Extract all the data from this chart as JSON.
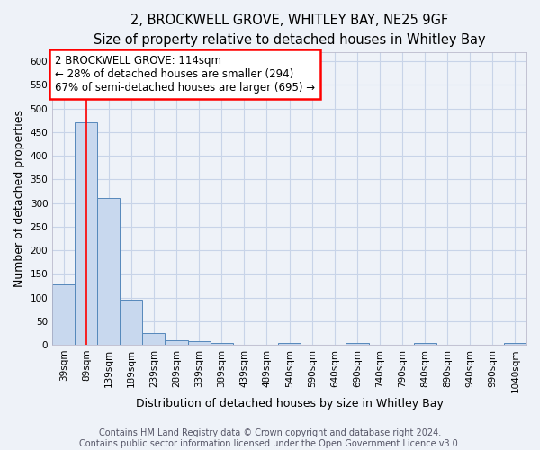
{
  "title_line1": "2, BROCKWELL GROVE, WHITLEY BAY, NE25 9GF",
  "title_line2": "Size of property relative to detached houses in Whitley Bay",
  "xlabel": "Distribution of detached houses by size in Whitley Bay",
  "ylabel": "Number of detached properties",
  "bins": [
    "39sqm",
    "89sqm",
    "139sqm",
    "189sqm",
    "239sqm",
    "289sqm",
    "339sqm",
    "389sqm",
    "439sqm",
    "489sqm",
    "540sqm",
    "590sqm",
    "640sqm",
    "690sqm",
    "740sqm",
    "790sqm",
    "840sqm",
    "890sqm",
    "940sqm",
    "990sqm",
    "1040sqm"
  ],
  "bin_left_edges": [
    39,
    89,
    139,
    189,
    239,
    289,
    339,
    389,
    439,
    489,
    540,
    590,
    640,
    690,
    740,
    790,
    840,
    890,
    940,
    990,
    1040
  ],
  "bin_widths": [
    50,
    50,
    50,
    50,
    50,
    50,
    50,
    50,
    50,
    51,
    50,
    50,
    50,
    50,
    50,
    50,
    50,
    50,
    50,
    50,
    50
  ],
  "values": [
    128,
    470,
    310,
    96,
    25,
    10,
    7,
    4,
    0,
    0,
    4,
    0,
    0,
    4,
    0,
    0,
    4,
    0,
    0,
    0,
    4
  ],
  "bar_color": "#c8d8ee",
  "bar_edge_color": "#5588bb",
  "grid_color": "#c8d4e8",
  "background_color": "#eef2f8",
  "annotation_text": "2 BROCKWELL GROVE: 114sqm\n← 28% of detached houses are smaller (294)\n67% of semi-detached houses are larger (695) →",
  "annotation_box_color": "white",
  "annotation_box_edge": "red",
  "property_line_x": 114,
  "property_line_color": "red",
  "ylim": [
    0,
    620
  ],
  "yticks": [
    0,
    50,
    100,
    150,
    200,
    250,
    300,
    350,
    400,
    450,
    500,
    550,
    600
  ],
  "footer_line1": "Contains HM Land Registry data © Crown copyright and database right 2024.",
  "footer_line2": "Contains public sector information licensed under the Open Government Licence v3.0.",
  "title_fontsize": 10.5,
  "subtitle_fontsize": 9,
  "axis_label_fontsize": 9,
  "tick_fontsize": 7.5,
  "annotation_fontsize": 8.5,
  "footer_fontsize": 7
}
